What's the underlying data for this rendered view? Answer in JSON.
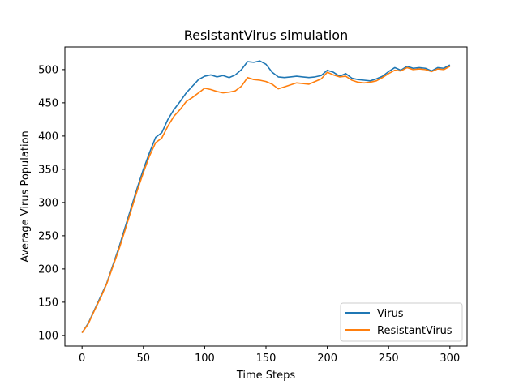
{
  "chart_data": {
    "type": "line",
    "title": "ResistantVirus simulation",
    "xlabel": "Time Steps",
    "ylabel": "Average Virus Population",
    "xlim": [
      -14,
      314
    ],
    "ylim": [
      84,
      534
    ],
    "xticks": [
      0,
      50,
      100,
      150,
      200,
      250,
      300
    ],
    "yticks": [
      100,
      150,
      200,
      250,
      300,
      350,
      400,
      450,
      500
    ],
    "grid": false,
    "legend_position": "lower-right",
    "series": [
      {
        "name": "Virus",
        "color": "#1f77b4",
        "points": [
          [
            0,
            104
          ],
          [
            5,
            118
          ],
          [
            10,
            138
          ],
          [
            15,
            158
          ],
          [
            20,
            178
          ],
          [
            25,
            205
          ],
          [
            30,
            232
          ],
          [
            35,
            262
          ],
          [
            40,
            292
          ],
          [
            45,
            322
          ],
          [
            50,
            350
          ],
          [
            55,
            375
          ],
          [
            60,
            398
          ],
          [
            65,
            405
          ],
          [
            70,
            425
          ],
          [
            75,
            440
          ],
          [
            80,
            452
          ],
          [
            85,
            465
          ],
          [
            90,
            475
          ],
          [
            95,
            485
          ],
          [
            100,
            490
          ],
          [
            105,
            492
          ],
          [
            110,
            489
          ],
          [
            115,
            491
          ],
          [
            120,
            488
          ],
          [
            125,
            492
          ],
          [
            130,
            500
          ],
          [
            135,
            512
          ],
          [
            140,
            511
          ],
          [
            145,
            513
          ],
          [
            150,
            508
          ],
          [
            155,
            496
          ],
          [
            160,
            489
          ],
          [
            165,
            488
          ],
          [
            170,
            489
          ],
          [
            175,
            490
          ],
          [
            180,
            489
          ],
          [
            185,
            488
          ],
          [
            190,
            489
          ],
          [
            195,
            491
          ],
          [
            200,
            499
          ],
          [
            205,
            496
          ],
          [
            210,
            490
          ],
          [
            215,
            494
          ],
          [
            220,
            487
          ],
          [
            225,
            485
          ],
          [
            230,
            484
          ],
          [
            235,
            483
          ],
          [
            240,
            486
          ],
          [
            245,
            490
          ],
          [
            250,
            497
          ],
          [
            255,
            503
          ],
          [
            260,
            499
          ],
          [
            265,
            505
          ],
          [
            270,
            502
          ],
          [
            275,
            503
          ],
          [
            280,
            502
          ],
          [
            285,
            498
          ],
          [
            290,
            503
          ],
          [
            295,
            502
          ],
          [
            300,
            507
          ]
        ]
      },
      {
        "name": "ResistantVirus",
        "color": "#ff7f0e",
        "points": [
          [
            0,
            104
          ],
          [
            5,
            117
          ],
          [
            10,
            137
          ],
          [
            15,
            156
          ],
          [
            20,
            177
          ],
          [
            25,
            203
          ],
          [
            30,
            229
          ],
          [
            35,
            258
          ],
          [
            40,
            288
          ],
          [
            45,
            318
          ],
          [
            50,
            345
          ],
          [
            55,
            370
          ],
          [
            60,
            390
          ],
          [
            65,
            397
          ],
          [
            70,
            415
          ],
          [
            75,
            430
          ],
          [
            80,
            440
          ],
          [
            85,
            452
          ],
          [
            90,
            458
          ],
          [
            95,
            465
          ],
          [
            100,
            472
          ],
          [
            105,
            470
          ],
          [
            110,
            467
          ],
          [
            115,
            465
          ],
          [
            120,
            466
          ],
          [
            125,
            468
          ],
          [
            130,
            475
          ],
          [
            135,
            488
          ],
          [
            140,
            485
          ],
          [
            145,
            484
          ],
          [
            150,
            482
          ],
          [
            155,
            478
          ],
          [
            160,
            471
          ],
          [
            165,
            474
          ],
          [
            170,
            477
          ],
          [
            175,
            480
          ],
          [
            180,
            479
          ],
          [
            185,
            478
          ],
          [
            190,
            482
          ],
          [
            195,
            486
          ],
          [
            200,
            496
          ],
          [
            205,
            492
          ],
          [
            210,
            489
          ],
          [
            215,
            490
          ],
          [
            220,
            484
          ],
          [
            225,
            481
          ],
          [
            230,
            480
          ],
          [
            235,
            481
          ],
          [
            240,
            483
          ],
          [
            245,
            488
          ],
          [
            250,
            494
          ],
          [
            255,
            499
          ],
          [
            260,
            498
          ],
          [
            265,
            503
          ],
          [
            270,
            500
          ],
          [
            275,
            501
          ],
          [
            280,
            500
          ],
          [
            285,
            497
          ],
          [
            290,
            501
          ],
          [
            295,
            500
          ],
          [
            300,
            505
          ]
        ]
      }
    ]
  }
}
